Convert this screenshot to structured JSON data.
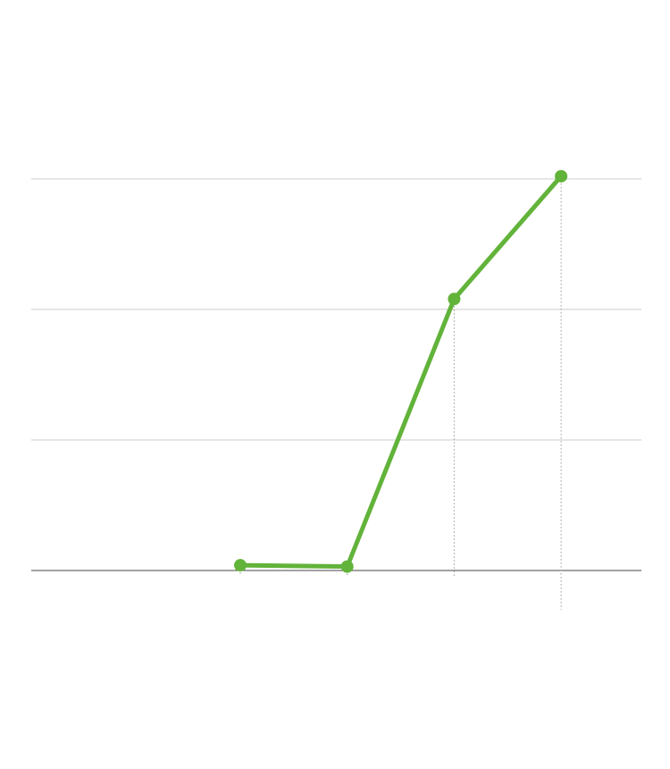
{
  "chart_data": {
    "type": "line",
    "categories": [
      null,
      null,
      null,
      null
    ],
    "series": [
      {
        "color": "#62b33a",
        "values": [
          0.04,
          0.03,
          2.08,
          3.02
        ]
      }
    ],
    "ylim": [
      0,
      3
    ],
    "yticks": [
      0,
      1,
      2,
      3
    ],
    "grid": true
  }
}
